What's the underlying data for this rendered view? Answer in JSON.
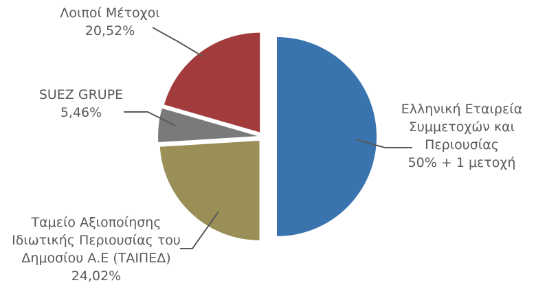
{
  "chart_data": {
    "type": "pie",
    "exploded": true,
    "start_angle_deg": 0,
    "direction": "clockwise",
    "slices": [
      {
        "label_lines": [
          "Ελληνική Εταιρεία",
          "Συμμετοχών και",
          "Περιουσίας"
        ],
        "value": 50.0,
        "value_text": "50% + 1 μετοχή",
        "color": "#3A74AE"
      },
      {
        "label_lines": [
          "Ταμείο Αξιοποίησης",
          "Ιδιωτικής Περιουσίας του",
          "Δημοσίου Α.Ε (ΤΑΙΠΕΔ)"
        ],
        "value": 24.02,
        "value_text": "24,02%",
        "color": "#998F57"
      },
      {
        "label_lines": [
          "SUEZ GRUPE"
        ],
        "value": 5.46,
        "value_text": "5,46%",
        "color": "#7A7A7A"
      },
      {
        "label_lines": [
          "Λοιποί Μέτοχοι"
        ],
        "value": 20.52,
        "value_text": "20,52%",
        "color": "#A23C3C"
      }
    ],
    "label_color": "#595959",
    "legend": "none"
  }
}
